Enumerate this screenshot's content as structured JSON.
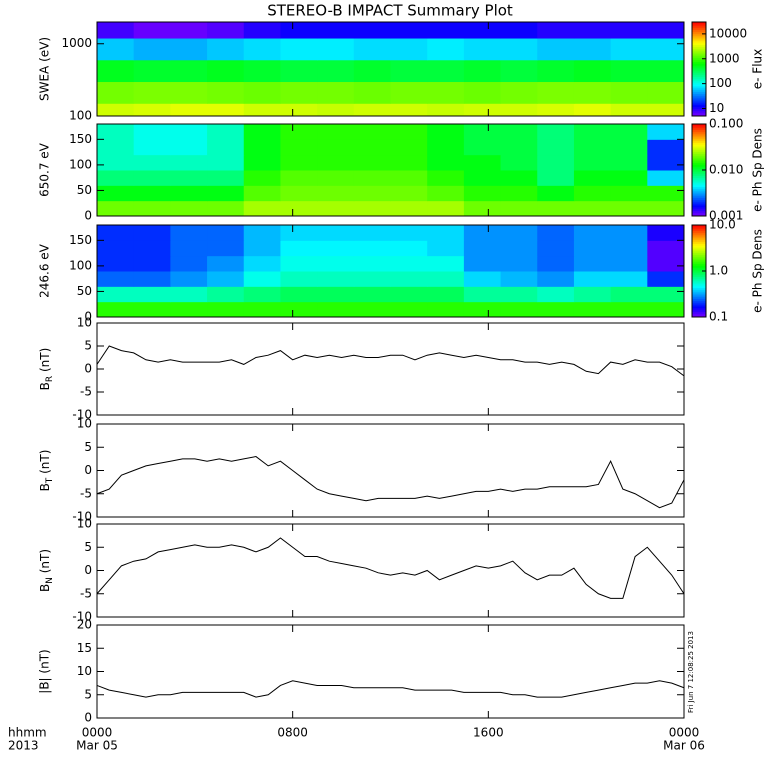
{
  "title": "STEREO-B IMPACT Summary Plot",
  "timestamp": "Fri Jun  7 12:08:25 2013",
  "x_axis": {
    "xlim": [
      0,
      24
    ],
    "xticks": [
      {
        "value": 0,
        "label": "0000"
      },
      {
        "value": 8,
        "label": "0800"
      },
      {
        "value": 16,
        "label": "1600"
      },
      {
        "value": 24,
        "label": "0000"
      }
    ],
    "date_labels": [
      {
        "value": 0,
        "label": "Mar 05"
      },
      {
        "value": 24,
        "label": "Mar 06"
      }
    ],
    "label": [
      "hhmm",
      "2013"
    ]
  },
  "chart_data": [
    {
      "type": "heatmap",
      "ylabel": "SWEA (eV)",
      "log_y": true,
      "ylim": [
        100,
        2000
      ],
      "yticks": [
        100,
        1000
      ],
      "y_bins": [
        100,
        150,
        300,
        600,
        1200,
        2000
      ],
      "time_bins": [
        0,
        1.5,
        3,
        4.5,
        6,
        7.5,
        9,
        10.5,
        12,
        13.5,
        15,
        16.5,
        18,
        19.5,
        21,
        22.5,
        24
      ],
      "values": [
        [
          3000,
          3200,
          3500,
          3500,
          3000,
          3000,
          2800,
          3000,
          3000,
          2800,
          3000,
          3000,
          3200,
          3500,
          3000,
          3000
        ],
        [
          1500,
          1600,
          1600,
          1500,
          1400,
          1500,
          1500,
          1400,
          1500,
          1500,
          1400,
          1500,
          1600,
          1600,
          1500,
          1500
        ],
        [
          500,
          450,
          450,
          500,
          450,
          400,
          400,
          450,
          400,
          400,
          450,
          400,
          450,
          500,
          450,
          450
        ],
        [
          60,
          50,
          50,
          60,
          70,
          80,
          80,
          70,
          70,
          80,
          70,
          70,
          60,
          60,
          70,
          70
        ],
        [
          8,
          6,
          6,
          7,
          10,
          12,
          12,
          12,
          12,
          12,
          12,
          12,
          10,
          10,
          10,
          10
        ]
      ],
      "colorbar": {
        "label": "e- Flux",
        "log": true,
        "clim": [
          5,
          30000
        ],
        "ticks": [
          10,
          100,
          1000,
          10000
        ]
      }
    },
    {
      "type": "heatmap",
      "ylabel": "650.7 eV",
      "ylim": [
        0,
        180
      ],
      "yticks": [
        0,
        50,
        100,
        150
      ],
      "y_bins": [
        0,
        30,
        60,
        90,
        120,
        150,
        180
      ],
      "time_bins": [
        0,
        1.5,
        3,
        4.5,
        6,
        7.5,
        9,
        10.5,
        12,
        13.5,
        15,
        16.5,
        18,
        19.5,
        21,
        22.5,
        24
      ],
      "values": [
        [
          0.02,
          0.02,
          0.02,
          0.02,
          0.025,
          0.025,
          0.025,
          0.025,
          0.025,
          0.025,
          0.02,
          0.02,
          0.02,
          0.02,
          0.02,
          0.02
        ],
        [
          0.012,
          0.012,
          0.012,
          0.012,
          0.018,
          0.02,
          0.02,
          0.02,
          0.02,
          0.018,
          0.015,
          0.015,
          0.012,
          0.015,
          0.015,
          0.015
        ],
        [
          0.008,
          0.008,
          0.008,
          0.008,
          0.015,
          0.018,
          0.018,
          0.018,
          0.018,
          0.015,
          0.012,
          0.012,
          0.008,
          0.012,
          0.012,
          0.004
        ],
        [
          0.006,
          0.006,
          0.006,
          0.006,
          0.012,
          0.015,
          0.015,
          0.015,
          0.015,
          0.012,
          0.012,
          0.01,
          0.008,
          0.01,
          0.01,
          0.002
        ],
        [
          0.006,
          0.005,
          0.005,
          0.006,
          0.012,
          0.015,
          0.015,
          0.015,
          0.015,
          0.012,
          0.01,
          0.01,
          0.008,
          0.01,
          0.01,
          0.002
        ],
        [
          0.006,
          0.005,
          0.005,
          0.006,
          0.012,
          0.015,
          0.015,
          0.015,
          0.015,
          0.012,
          0.01,
          0.01,
          0.008,
          0.01,
          0.01,
          0.004
        ]
      ],
      "colorbar": {
        "label": "e- Ph Sp Dens",
        "log": true,
        "clim": [
          0.001,
          0.1
        ],
        "ticks": [
          0.001,
          {
            "value": 0.01,
            "label": "0.010"
          },
          {
            "value": 0.1,
            "label": "0.100"
          }
        ]
      }
    },
    {
      "type": "heatmap",
      "ylabel": "246.6 eV",
      "ylim": [
        0,
        180
      ],
      "yticks": [
        0,
        50,
        100,
        150
      ],
      "y_bins": [
        0,
        30,
        60,
        90,
        120,
        150,
        180
      ],
      "time_bins": [
        0,
        1.5,
        3,
        4.5,
        6,
        7.5,
        9,
        10.5,
        12,
        13.5,
        15,
        16.5,
        18,
        19.5,
        21,
        22.5,
        24
      ],
      "values": [
        [
          1.5,
          1.5,
          1.5,
          1.5,
          1.5,
          1.5,
          1.5,
          1.5,
          1.5,
          1.5,
          1.5,
          1.5,
          1.5,
          1.5,
          1.5,
          1.5
        ],
        [
          0.6,
          0.6,
          0.6,
          0.7,
          0.8,
          0.9,
          0.9,
          0.9,
          0.9,
          0.9,
          0.7,
          0.7,
          0.6,
          0.7,
          0.8,
          0.8
        ],
        [
          0.25,
          0.25,
          0.3,
          0.35,
          0.5,
          0.6,
          0.6,
          0.6,
          0.6,
          0.6,
          0.4,
          0.35,
          0.3,
          0.4,
          0.4,
          0.2
        ],
        [
          0.2,
          0.2,
          0.25,
          0.3,
          0.4,
          0.5,
          0.5,
          0.5,
          0.5,
          0.5,
          0.3,
          0.3,
          0.25,
          0.3,
          0.3,
          0.12
        ],
        [
          0.2,
          0.2,
          0.25,
          0.25,
          0.35,
          0.45,
          0.45,
          0.45,
          0.45,
          0.4,
          0.3,
          0.3,
          0.25,
          0.3,
          0.3,
          0.12
        ],
        [
          0.2,
          0.2,
          0.25,
          0.25,
          0.35,
          0.4,
          0.4,
          0.4,
          0.4,
          0.4,
          0.3,
          0.3,
          0.25,
          0.3,
          0.3,
          0.15
        ]
      ],
      "colorbar": {
        "label": "e- Ph Sp Dens",
        "log": true,
        "clim": [
          0.1,
          10
        ],
        "ticks": [
          0.1,
          {
            "value": 1,
            "label": "1.0"
          },
          {
            "value": 10,
            "label": "10.0"
          }
        ]
      }
    },
    {
      "type": "line",
      "ylabel": {
        "base": "B",
        "sub": "R",
        "unit": " (nT)"
      },
      "ylim": [
        -10,
        10
      ],
      "yticks": [
        -10,
        -5,
        0,
        5,
        10
      ],
      "color": "#000000",
      "x": [
        0,
        0.5,
        1,
        1.5,
        2,
        2.5,
        3,
        3.5,
        4,
        4.5,
        5,
        5.5,
        6,
        6.5,
        7,
        7.5,
        8,
        8.5,
        9,
        9.5,
        10,
        10.5,
        11,
        11.5,
        12,
        12.5,
        13,
        13.5,
        14,
        14.5,
        15,
        15.5,
        16,
        16.5,
        17,
        17.5,
        18,
        18.5,
        19,
        19.5,
        20,
        20.5,
        21,
        21.5,
        22,
        22.5,
        23,
        23.5,
        24
      ],
      "values": [
        1,
        5,
        4,
        3.5,
        2,
        1.5,
        2,
        1.5,
        1.5,
        1.5,
        1.5,
        2,
        1,
        2.5,
        3,
        4,
        2,
        3,
        2.5,
        3,
        2.5,
        3,
        2.5,
        2.5,
        3,
        3,
        2,
        3,
        3.5,
        3,
        2.5,
        3,
        2.5,
        2,
        2,
        1.5,
        1.5,
        1,
        1.5,
        1,
        -0.5,
        -1,
        1.5,
        1,
        2,
        1.5,
        1.5,
        0.5,
        -1.5
      ]
    },
    {
      "type": "line",
      "ylabel": {
        "base": "B",
        "sub": "T",
        "unit": " (nT)"
      },
      "ylim": [
        -10,
        10
      ],
      "yticks": [
        -10,
        -5,
        0,
        5,
        10
      ],
      "color": "#000000",
      "x": [
        0,
        0.5,
        1,
        1.5,
        2,
        2.5,
        3,
        3.5,
        4,
        4.5,
        5,
        5.5,
        6,
        6.5,
        7,
        7.5,
        8,
        8.5,
        9,
        9.5,
        10,
        10.5,
        11,
        11.5,
        12,
        12.5,
        13,
        13.5,
        14,
        14.5,
        15,
        15.5,
        16,
        16.5,
        17,
        17.5,
        18,
        18.5,
        19,
        19.5,
        20,
        20.5,
        21,
        21.5,
        22,
        22.5,
        23,
        23.5,
        24
      ],
      "values": [
        -5,
        -4,
        -1,
        0,
        1,
        1.5,
        2,
        2.5,
        2.5,
        2,
        2.5,
        2,
        2.5,
        3,
        1,
        2,
        0,
        -2,
        -4,
        -5,
        -5.5,
        -6,
        -6.5,
        -6,
        -6,
        -6,
        -6,
        -5.5,
        -6,
        -5.5,
        -5,
        -4.5,
        -4.5,
        -4,
        -4.5,
        -4,
        -4,
        -3.5,
        -3.5,
        -3.5,
        -3.5,
        -3,
        2,
        -4,
        -5,
        -6.5,
        -8,
        -7,
        -2
      ]
    },
    {
      "type": "line",
      "ylabel": {
        "base": "B",
        "sub": "N",
        "unit": " (nT)"
      },
      "ylim": [
        -10,
        10
      ],
      "yticks": [
        -10,
        -5,
        0,
        5,
        10
      ],
      "color": "#000000",
      "x": [
        0,
        0.5,
        1,
        1.5,
        2,
        2.5,
        3,
        3.5,
        4,
        4.5,
        5,
        5.5,
        6,
        6.5,
        7,
        7.5,
        8,
        8.5,
        9,
        9.5,
        10,
        10.5,
        11,
        11.5,
        12,
        12.5,
        13,
        13.5,
        14,
        14.5,
        15,
        15.5,
        16,
        16.5,
        17,
        17.5,
        18,
        18.5,
        19,
        19.5,
        20,
        20.5,
        21,
        21.5,
        22,
        22.5,
        23,
        23.5,
        24
      ],
      "values": [
        -5,
        -2,
        1,
        2,
        2.5,
        4,
        4.5,
        5,
        5.5,
        5,
        5,
        5.5,
        5,
        4,
        5,
        7,
        5,
        3,
        3,
        2,
        1.5,
        1,
        0.5,
        -0.5,
        -1,
        -0.5,
        -1,
        0,
        -2,
        -1,
        0,
        1,
        0.5,
        1,
        2,
        -0.5,
        -2,
        -1,
        -1,
        0.5,
        -3,
        -5,
        -6,
        -6,
        3,
        5,
        2,
        -1,
        -5
      ]
    },
    {
      "type": "line",
      "ylabel": "|B| (nT)",
      "ylim": [
        0,
        20
      ],
      "yticks": [
        0,
        5,
        10,
        15,
        20
      ],
      "color": "#000000",
      "x": [
        0,
        0.5,
        1,
        1.5,
        2,
        2.5,
        3,
        3.5,
        4,
        4.5,
        5,
        5.5,
        6,
        6.5,
        7,
        7.5,
        8,
        8.5,
        9,
        9.5,
        10,
        10.5,
        11,
        11.5,
        12,
        12.5,
        13,
        13.5,
        14,
        14.5,
        15,
        15.5,
        16,
        16.5,
        17,
        17.5,
        18,
        18.5,
        19,
        19.5,
        20,
        20.5,
        21,
        21.5,
        22,
        22.5,
        23,
        23.5,
        24
      ],
      "values": [
        7,
        6,
        5.5,
        5,
        4.5,
        5,
        5,
        5.5,
        5.5,
        5.5,
        5.5,
        5.5,
        5.5,
        4.5,
        5,
        7,
        8,
        7.5,
        7,
        7,
        7,
        6.5,
        6.5,
        6.5,
        6.5,
        6.5,
        6,
        6,
        6,
        6,
        5.5,
        5.5,
        5.5,
        5.5,
        5,
        5,
        4.5,
        4.5,
        4.5,
        5,
        5.5,
        6,
        6.5,
        7,
        7.5,
        7.5,
        8,
        7.5,
        6.5
      ]
    }
  ]
}
